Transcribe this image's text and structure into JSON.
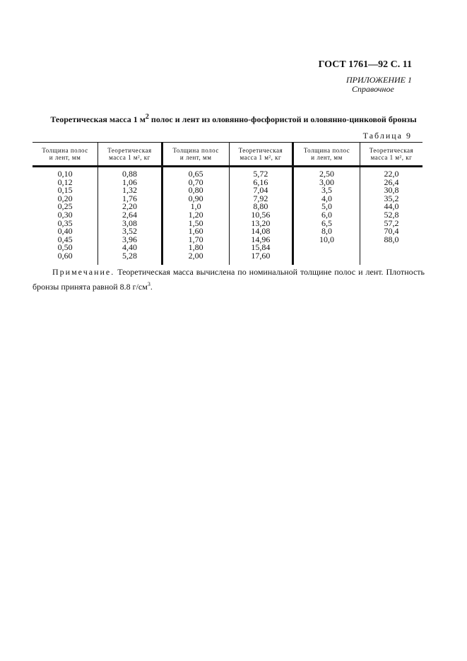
{
  "header": {
    "standard": "ГОСТ 1761—92 С. 11",
    "appendix": "ПРИЛОЖЕНИЕ 1",
    "appendix_type": "Справочное"
  },
  "title": {
    "before": "Теоретическая масса 1 м",
    "sup": "2",
    "after": " полос и лент из оловянно-фосфористой и оловянно-цинковой бронзы"
  },
  "table_label": "Таблица 9",
  "table": {
    "headers": [
      [
        "Толщина полос",
        "и лент, мм"
      ],
      [
        "Теоретическая",
        "масса 1 м², кг"
      ],
      [
        "Толщина полос",
        "и лент, мм"
      ],
      [
        "Теоретическая",
        "масса 1 м², кг"
      ],
      [
        "Толщина полос",
        "и лент, мм"
      ],
      [
        "Теоретическая",
        "масса 1 м², кг"
      ]
    ],
    "columns": [
      [
        "0,10",
        "0,12",
        "0,15",
        "0,20",
        "0,25",
        "0,30",
        "0,35",
        "0,40",
        "0,45",
        "0,50",
        "0,60"
      ],
      [
        "0,88",
        "1,06",
        "1,32",
        "1,76",
        "2,20",
        "2,64",
        "3,08",
        "3,52",
        "3,96",
        "4,40",
        "5,28"
      ],
      [
        "0,65",
        "0,70",
        "0,80",
        "0,90",
        "1,0",
        "1,20",
        "1,50",
        "1,60",
        "1,70",
        "1,80",
        "2,00"
      ],
      [
        "5,72",
        "6,16",
        "7,04",
        "7,92",
        "8,80",
        "10,56",
        "13,20",
        "14,08",
        "14,96",
        "15,84",
        "17,60"
      ],
      [
        "2,50",
        "3,00",
        "3,5",
        "4,0",
        "5,0",
        "6,0",
        "6,5",
        "8,0",
        "10,0"
      ],
      [
        "22,0",
        "26,4",
        "30,8",
        "35,2",
        "44,0",
        "52,8",
        "57,2",
        "70,4",
        "88,0"
      ]
    ]
  },
  "note": {
    "label": "Примечание.",
    "text": " Теоретическая масса вычислена по номинальной толщине полос и лент. Плотность бронзы принята равной 8.8 г/см",
    "sup": "3",
    "end": "."
  }
}
